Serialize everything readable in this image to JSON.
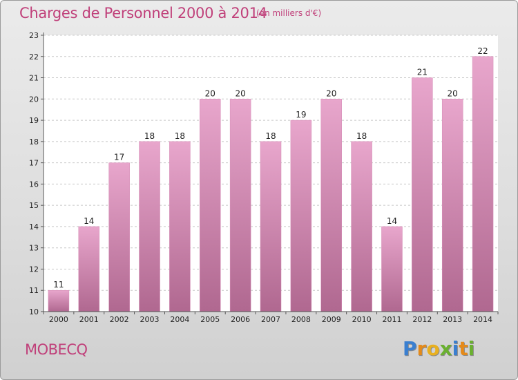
{
  "header": {
    "title": "Charges de Personnel 2000 à 2014",
    "subtitle": "(en milliers d'€)"
  },
  "footer": {
    "place": "MOBECQ",
    "brand": [
      "P",
      "r",
      "o",
      "x",
      "i",
      "t",
      "i"
    ]
  },
  "colors": {
    "title": "#c0407a",
    "bar_top": "#e8a6cc",
    "bar_bottom": "#b06890",
    "brand_letters": [
      "#3a7fd0",
      "#e48a1a",
      "#e8b020",
      "#6ab030",
      "#3a7fd0",
      "#e48a1a",
      "#6ab030"
    ]
  },
  "chart_data": {
    "type": "bar",
    "categories": [
      "2000",
      "2001",
      "2002",
      "2003",
      "2004",
      "2005",
      "2006",
      "2007",
      "2008",
      "2009",
      "2010",
      "2011",
      "2012",
      "2013",
      "2014"
    ],
    "values": [
      11,
      14,
      17,
      18,
      18,
      20,
      20,
      18,
      19,
      20,
      18,
      14,
      21,
      20,
      22
    ],
    "ylim": [
      10,
      23
    ],
    "yticks": [
      "10",
      "11",
      "12",
      "13",
      "14",
      "15",
      "16",
      "17",
      "18",
      "19",
      "20",
      "21",
      "22",
      "23"
    ],
    "grid": "horizontal-dashed"
  }
}
